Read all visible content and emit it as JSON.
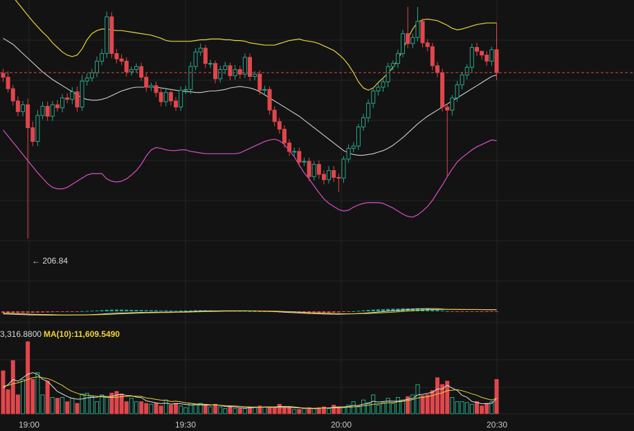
{
  "chart_data": {
    "type": "candlestick",
    "title": "",
    "low_marker_label": "← 206.84",
    "volume_legend": {
      "ma5_fragment": "3,316.8800",
      "ma10_label": "MA(10):11,609.5490"
    },
    "x_ticks": [
      "19:00",
      "19:30",
      "20:00",
      "20:30"
    ],
    "price_range": [
      200,
      238
    ],
    "current_price": 228.5,
    "colors": {
      "up": "#26a98b",
      "down": "#e0474c",
      "bb_upper": "#e8d33a",
      "bb_mid": "#cfcfcf",
      "bb_lower": "#d94fc8",
      "macd_dif": "#d8d8d8",
      "macd_dea": "#e8d33a",
      "ma5": "#e0e0e0",
      "ma10": "#e8d33a",
      "grid": "#262626"
    },
    "close": [
      227.9,
      226.4,
      224.8,
      223.4,
      224.3,
      221.3,
      219.5,
      222.9,
      224.1,
      222.8,
      224.3,
      223.9,
      225.2,
      225.0,
      226.0,
      224.0,
      227.4,
      227.8,
      228.5,
      230.0,
      231.0,
      235.8,
      231.0,
      230.3,
      230.0,
      228.6,
      228.9,
      229.3,
      227.9,
      226.6,
      226.8,
      225.9,
      224.7,
      225.9,
      224.8,
      224.0,
      226.2,
      226.3,
      229.3,
      231.2,
      231.7,
      229.7,
      229.7,
      227.7,
      228.9,
      229.4,
      228.1,
      228.9,
      228.3,
      230.5,
      228.0,
      228.3,
      226.2,
      226.3,
      223.6,
      222.1,
      221.1,
      219.3,
      218.2,
      218.2,
      216.8,
      216.9,
      214.9,
      216.5,
      215.2,
      214.5,
      215.7,
      214.8,
      214.7,
      217.2,
      218.6,
      218.9,
      221.4,
      222.6,
      224.5,
      226.1,
      226.6,
      227.3,
      229.3,
      229.7,
      231.0,
      233.6,
      232.3,
      233.1,
      235.2,
      232.4,
      231.9,
      229.4,
      228.5,
      224.0,
      223.6,
      225.2,
      226.9,
      228.2,
      229.2,
      231.8,
      231.3,
      230.8,
      230.0,
      231.5,
      228.5
    ],
    "open": [
      228.4,
      227.9,
      226.4,
      224.8,
      223.4,
      224.3,
      221.3,
      219.5,
      222.9,
      224.1,
      222.8,
      224.3,
      223.9,
      225.2,
      225.0,
      226.0,
      224.0,
      227.4,
      227.8,
      228.5,
      230.0,
      231.0,
      235.8,
      231.0,
      230.3,
      230.0,
      228.6,
      228.9,
      229.3,
      227.9,
      226.6,
      226.8,
      225.9,
      224.7,
      225.9,
      224.8,
      224.0,
      226.2,
      226.3,
      229.3,
      231.2,
      231.7,
      229.7,
      229.7,
      227.7,
      228.9,
      229.4,
      228.1,
      228.9,
      228.3,
      230.5,
      228.0,
      228.3,
      226.2,
      226.3,
      223.6,
      222.1,
      221.1,
      219.3,
      218.2,
      218.2,
      216.8,
      216.9,
      214.9,
      216.5,
      215.2,
      214.5,
      215.7,
      214.8,
      214.7,
      217.2,
      218.6,
      218.9,
      221.4,
      222.6,
      224.5,
      226.1,
      226.6,
      227.3,
      229.3,
      229.7,
      231.0,
      233.6,
      232.3,
      233.1,
      235.2,
      232.4,
      231.9,
      229.4,
      228.5,
      224.0,
      223.6,
      225.2,
      226.9,
      228.2,
      229.2,
      231.8,
      231.3,
      230.8,
      230.0,
      231.5
    ],
    "high": [
      229.0,
      228.7,
      226.9,
      225.4,
      224.8,
      225.1,
      222.1,
      223.6,
      224.7,
      224.7,
      224.8,
      224.9,
      225.7,
      225.8,
      226.6,
      226.7,
      228.2,
      228.4,
      229.0,
      230.6,
      231.6,
      236.5,
      236.4,
      231.6,
      230.9,
      230.5,
      229.3,
      229.7,
      229.8,
      228.4,
      227.2,
      227.3,
      226.4,
      226.5,
      226.4,
      225.3,
      226.7,
      226.8,
      229.9,
      231.7,
      232.3,
      232.1,
      230.2,
      230.1,
      229.4,
      229.9,
      229.8,
      229.5,
      229.4,
      231.0,
      231.0,
      228.7,
      228.8,
      226.8,
      226.7,
      224.1,
      222.6,
      221.6,
      219.8,
      218.7,
      218.7,
      217.4,
      217.4,
      216.9,
      217.0,
      215.7,
      216.3,
      216.3,
      215.3,
      217.6,
      219.1,
      219.4,
      221.8,
      223.1,
      225.0,
      226.6,
      227.1,
      227.8,
      229.8,
      230.1,
      231.5,
      234.1,
      237.1,
      233.6,
      237.1,
      235.6,
      232.9,
      232.4,
      229.9,
      229.0,
      224.4,
      225.6,
      227.4,
      228.6,
      229.6,
      232.3,
      232.4,
      231.3,
      231.3,
      231.9,
      235.0
    ],
    "low": [
      227.3,
      225.9,
      224.2,
      222.8,
      222.8,
      206.8,
      218.9,
      218.9,
      222.4,
      222.2,
      222.2,
      223.4,
      223.3,
      224.5,
      224.4,
      223.4,
      223.5,
      226.8,
      227.3,
      227.9,
      229.5,
      230.4,
      230.4,
      229.7,
      229.5,
      228.0,
      228.1,
      228.5,
      227.4,
      226.0,
      226.1,
      225.3,
      224.1,
      224.1,
      224.2,
      223.5,
      223.5,
      225.7,
      225.7,
      228.8,
      230.7,
      229.1,
      229.1,
      227.1,
      227.2,
      228.3,
      227.5,
      227.6,
      227.7,
      227.8,
      227.4,
      227.5,
      225.6,
      225.6,
      223.0,
      221.5,
      220.5,
      218.7,
      217.6,
      217.6,
      216.2,
      216.3,
      214.3,
      214.4,
      214.6,
      213.9,
      214.0,
      214.2,
      212.9,
      214.1,
      216.7,
      218.1,
      218.4,
      220.9,
      222.0,
      223.9,
      225.5,
      226.0,
      226.6,
      228.8,
      229.1,
      230.5,
      231.7,
      231.7,
      232.6,
      231.8,
      231.3,
      228.8,
      227.9,
      223.4,
      214.8,
      222.9,
      224.7,
      226.3,
      227.6,
      228.6,
      230.7,
      230.2,
      229.4,
      229.4,
      227.5
    ],
    "bb_upper": [
      240.0,
      239.2,
      238.4,
      237.6,
      236.8,
      236.0,
      235.2,
      234.5,
      233.8,
      233.2,
      232.4,
      231.8,
      231.2,
      230.8,
      230.6,
      230.8,
      231.6,
      232.8,
      233.6,
      234.0,
      234.2,
      234.2,
      234.1,
      234.0,
      234.0,
      233.9,
      233.8,
      233.7,
      233.6,
      233.5,
      233.4,
      233.2,
      233.0,
      232.7,
      232.6,
      232.6,
      232.6,
      232.6,
      232.6,
      232.7,
      232.8,
      232.8,
      232.9,
      232.9,
      232.9,
      232.8,
      232.8,
      232.7,
      232.7,
      232.6,
      232.4,
      232.3,
      232.2,
      232.1,
      232.1,
      232.1,
      232.3,
      232.5,
      232.7,
      232.8,
      232.9,
      232.7,
      232.6,
      232.5,
      232.3,
      232.0,
      231.7,
      231.4,
      230.9,
      230.3,
      229.5,
      228.5,
      227.3,
      226.5,
      226.2,
      226.5,
      227.2,
      227.8,
      228.4,
      229.2,
      230.2,
      231.5,
      233.0,
      234.2,
      235.1,
      235.4,
      235.5,
      235.4,
      235.3,
      235.0,
      234.7,
      234.3,
      234.1,
      234.2,
      234.4,
      234.6,
      234.8,
      234.9,
      235.0,
      235.0,
      235.0
    ],
    "bb_mid": [
      233.0,
      232.6,
      232.2,
      231.6,
      231.0,
      230.4,
      229.8,
      229.2,
      228.6,
      228.1,
      227.6,
      227.2,
      226.8,
      226.4,
      226.0,
      225.6,
      225.2,
      225.0,
      224.9,
      224.9,
      225.0,
      225.2,
      225.5,
      225.8,
      226.1,
      226.3,
      226.5,
      226.6,
      226.6,
      226.6,
      226.6,
      226.6,
      226.5,
      226.4,
      226.3,
      226.2,
      226.1,
      226.0,
      226.0,
      225.9,
      225.9,
      226.0,
      226.1,
      226.1,
      226.2,
      226.3,
      226.5,
      226.6,
      226.7,
      226.6,
      226.5,
      226.3,
      226.0,
      225.6,
      225.2,
      224.8,
      224.4,
      224.0,
      223.6,
      223.2,
      222.8,
      222.3,
      221.8,
      221.3,
      220.8,
      220.3,
      219.8,
      219.3,
      218.8,
      218.3,
      218.0,
      217.8,
      217.7,
      217.7,
      217.8,
      217.9,
      218.1,
      218.3,
      218.6,
      219.0,
      219.5,
      220.0,
      220.6,
      221.2,
      221.8,
      222.3,
      222.8,
      223.2,
      223.6,
      224.0,
      224.4,
      224.8,
      225.2,
      225.6,
      226.0,
      226.4,
      226.8,
      227.2,
      227.6,
      228.0,
      228.2
    ],
    "bb_lower": [
      221.0,
      220.2,
      219.4,
      218.6,
      217.8,
      217.0,
      216.2,
      215.4,
      214.7,
      214.0,
      213.5,
      213.3,
      213.3,
      213.5,
      213.9,
      214.3,
      214.7,
      215.1,
      215.3,
      215.3,
      215.3,
      214.6,
      214.3,
      214.2,
      214.3,
      214.6,
      215.1,
      215.7,
      216.5,
      217.6,
      218.4,
      218.7,
      218.6,
      218.4,
      218.3,
      218.3,
      218.4,
      218.4,
      218.2,
      218.1,
      218.0,
      217.9,
      217.9,
      217.9,
      217.9,
      217.9,
      217.9,
      217.9,
      218.0,
      218.3,
      218.6,
      218.9,
      219.2,
      219.5,
      219.7,
      219.8,
      219.6,
      219.1,
      218.3,
      217.5,
      216.4,
      215.4,
      214.6,
      213.7,
      212.8,
      212.0,
      211.4,
      211.0,
      210.6,
      210.4,
      210.5,
      210.9,
      211.2,
      211.4,
      211.5,
      211.5,
      211.5,
      211.4,
      211.1,
      210.8,
      210.4,
      210.0,
      209.7,
      209.6,
      209.9,
      210.4,
      211.0,
      211.8,
      212.8,
      213.8,
      214.9,
      215.9,
      216.8,
      217.4,
      217.9,
      218.4,
      218.8,
      219.1,
      219.4,
      219.7,
      219.6
    ],
    "macd_dif": [
      -1.15,
      -1.24,
      -1.33,
      -1.41,
      -1.47,
      -1.55,
      -1.61,
      -1.66,
      -1.7,
      -1.72,
      -1.73,
      -1.73,
      -1.72,
      -1.71,
      -1.69,
      -1.67,
      -1.61,
      -1.55,
      -1.47,
      -1.37,
      -1.25,
      -1.07,
      -0.94,
      -0.82,
      -0.74,
      -0.68,
      -0.61,
      -0.55,
      -0.51,
      -0.49,
      -0.44,
      -0.4,
      -0.39,
      -0.34,
      -0.32,
      -0.31,
      -0.24,
      -0.19,
      -0.11,
      -0.01,
      0.07,
      0.12,
      0.16,
      0.16,
      0.18,
      0.21,
      0.21,
      0.22,
      0.21,
      0.23,
      0.2,
      0.18,
      0.13,
      0.07,
      0.0,
      -0.11,
      -0.23,
      -0.36,
      -0.5,
      -0.63,
      -0.76,
      -0.87,
      -0.99,
      -1.06,
      -1.14,
      -1.21,
      -1.24,
      -1.28,
      -1.3,
      -1.25,
      -1.18,
      -1.11,
      -0.98,
      -0.84,
      -0.67,
      -0.49,
      -0.32,
      -0.16,
      0.05,
      0.22,
      0.39,
      0.62,
      0.79,
      0.94,
      1.12,
      1.2,
      1.24,
      1.23,
      1.18,
      1.04,
      0.91,
      0.85,
      0.81,
      0.79,
      0.77,
      0.79,
      0.77,
      0.74,
      0.71,
      0.72,
      0.65
    ],
    "macd_dea": [
      -0.8,
      -0.87,
      -0.96,
      -1.05,
      -1.13,
      -1.22,
      -1.3,
      -1.37,
      -1.44,
      -1.49,
      -1.54,
      -1.58,
      -1.61,
      -1.63,
      -1.64,
      -1.65,
      -1.64,
      -1.62,
      -1.59,
      -1.54,
      -1.49,
      -1.4,
      -1.31,
      -1.21,
      -1.12,
      -1.03,
      -0.94,
      -0.86,
      -0.79,
      -0.73,
      -0.67,
      -0.62,
      -0.57,
      -0.53,
      -0.49,
      -0.45,
      -0.41,
      -0.37,
      -0.31,
      -0.25,
      -0.19,
      -0.13,
      -0.07,
      -0.03,
      0.01,
      0.05,
      0.08,
      0.11,
      0.13,
      0.15,
      0.16,
      0.16,
      0.16,
      0.14,
      0.11,
      0.07,
      0.01,
      -0.06,
      -0.15,
      -0.25,
      -0.35,
      -0.45,
      -0.56,
      -0.66,
      -0.76,
      -0.85,
      -0.92,
      -0.99,
      -1.05,
      -1.09,
      -1.11,
      -1.11,
      -1.09,
      -1.04,
      -0.96,
      -0.87,
      -0.76,
      -0.64,
      -0.5,
      -0.36,
      -0.21,
      -0.04,
      0.13,
      0.29,
      0.45,
      0.58,
      0.69,
      0.78,
      0.84,
      0.87,
      0.87,
      0.86,
      0.85,
      0.84,
      0.82,
      0.81,
      0.81,
      0.79,
      0.78,
      0.76,
      0.74
    ],
    "volume": [
      25000,
      14000,
      31000,
      11000,
      20000,
      42000,
      20000,
      24000,
      11000,
      19000,
      9500,
      9000,
      9500,
      7000,
      9000,
      6000,
      11500,
      12000,
      10000,
      7000,
      11000,
      9500,
      12000,
      13000,
      11500,
      7000,
      9000,
      7000,
      7000,
      6000,
      5500,
      6000,
      4500,
      8000,
      5000,
      6000,
      4500,
      3500,
      6000,
      5500,
      6000,
      5000,
      4000,
      5500,
      4000,
      3000,
      4500,
      3000,
      3000,
      3000,
      4000,
      4000,
      4500,
      4000,
      3500,
      3500,
      5500,
      4000,
      4000,
      2500,
      2500,
      3000,
      3500,
      3000,
      3500,
      4000,
      3000,
      5000,
      4000,
      4000,
      5000,
      7000,
      4000,
      8000,
      6500,
      11000,
      5000,
      6500,
      9000,
      6000,
      9500,
      8000,
      10000,
      11000,
      17000,
      10500,
      11000,
      13500,
      21000,
      17000,
      19000,
      9500,
      7000,
      7000,
      6500,
      5500,
      7000,
      4500,
      6000,
      7000,
      20000
    ],
    "volume_ma5": [
      15000,
      17000,
      20000,
      19000,
      21000,
      23000,
      24000,
      23000,
      20000,
      19000,
      16000,
      13000,
      11500,
      10000,
      9000,
      8500,
      8600,
      9300,
      9500,
      9600,
      10400,
      10000,
      10100,
      10800,
      11400,
      10600,
      10500,
      9700,
      9400,
      7500,
      6900,
      6300,
      5900,
      6200,
      5600,
      5900,
      5800,
      5400,
      5100,
      5200,
      5200,
      5000,
      5000,
      5200,
      4900,
      4200,
      4100,
      4000,
      3500,
      3300,
      3500,
      3600,
      3800,
      3900,
      4000,
      3900,
      4200,
      4200,
      4200,
      3900,
      3600,
      3200,
      3100,
      2900,
      3100,
      3400,
      3400,
      3700,
      3900,
      4000,
      4200,
      4800,
      4800,
      5600,
      5900,
      7300,
      6800,
      7100,
      7400,
      7300,
      7300,
      7800,
      8500,
      8900,
      11000,
      11300,
      11900,
      12500,
      14400,
      14500,
      16600,
      15000,
      13600,
      10700,
      9600,
      7100,
      6600,
      5800,
      5900,
      6000,
      9000
    ],
    "volume_ma10": [
      16000,
      16500,
      17500,
      18000,
      19000,
      20000,
      21000,
      21500,
      21000,
      20500,
      19500,
      18000,
      16500,
      14500,
      13000,
      12000,
      11000,
      10800,
      10500,
      10200,
      9800,
      9600,
      9500,
      9600,
      9900,
      10100,
      10300,
      10200,
      10100,
      9200,
      8900,
      8300,
      7900,
      7800,
      7100,
      7300,
      6900,
      6400,
      6100,
      5700,
      5600,
      5500,
      5200,
      5100,
      4900,
      4700,
      4600,
      4500,
      4300,
      4100,
      3900,
      3800,
      3800,
      3800,
      3800,
      3700,
      3700,
      3700,
      3600,
      3500,
      3400,
      3300,
      3200,
      3200,
      3200,
      3300,
      3300,
      3400,
      3500,
      3600,
      3800,
      4000,
      4300,
      4600,
      4900,
      5500,
      5700,
      6000,
      6400,
      6500,
      7000,
      7200,
      7700,
      8200,
      9200,
      9500,
      10000,
      10600,
      11500,
      12200,
      13400,
      13700,
      14000,
      13400,
      12600,
      11600,
      10800,
      9500,
      8700,
      8000,
      9000
    ]
  }
}
